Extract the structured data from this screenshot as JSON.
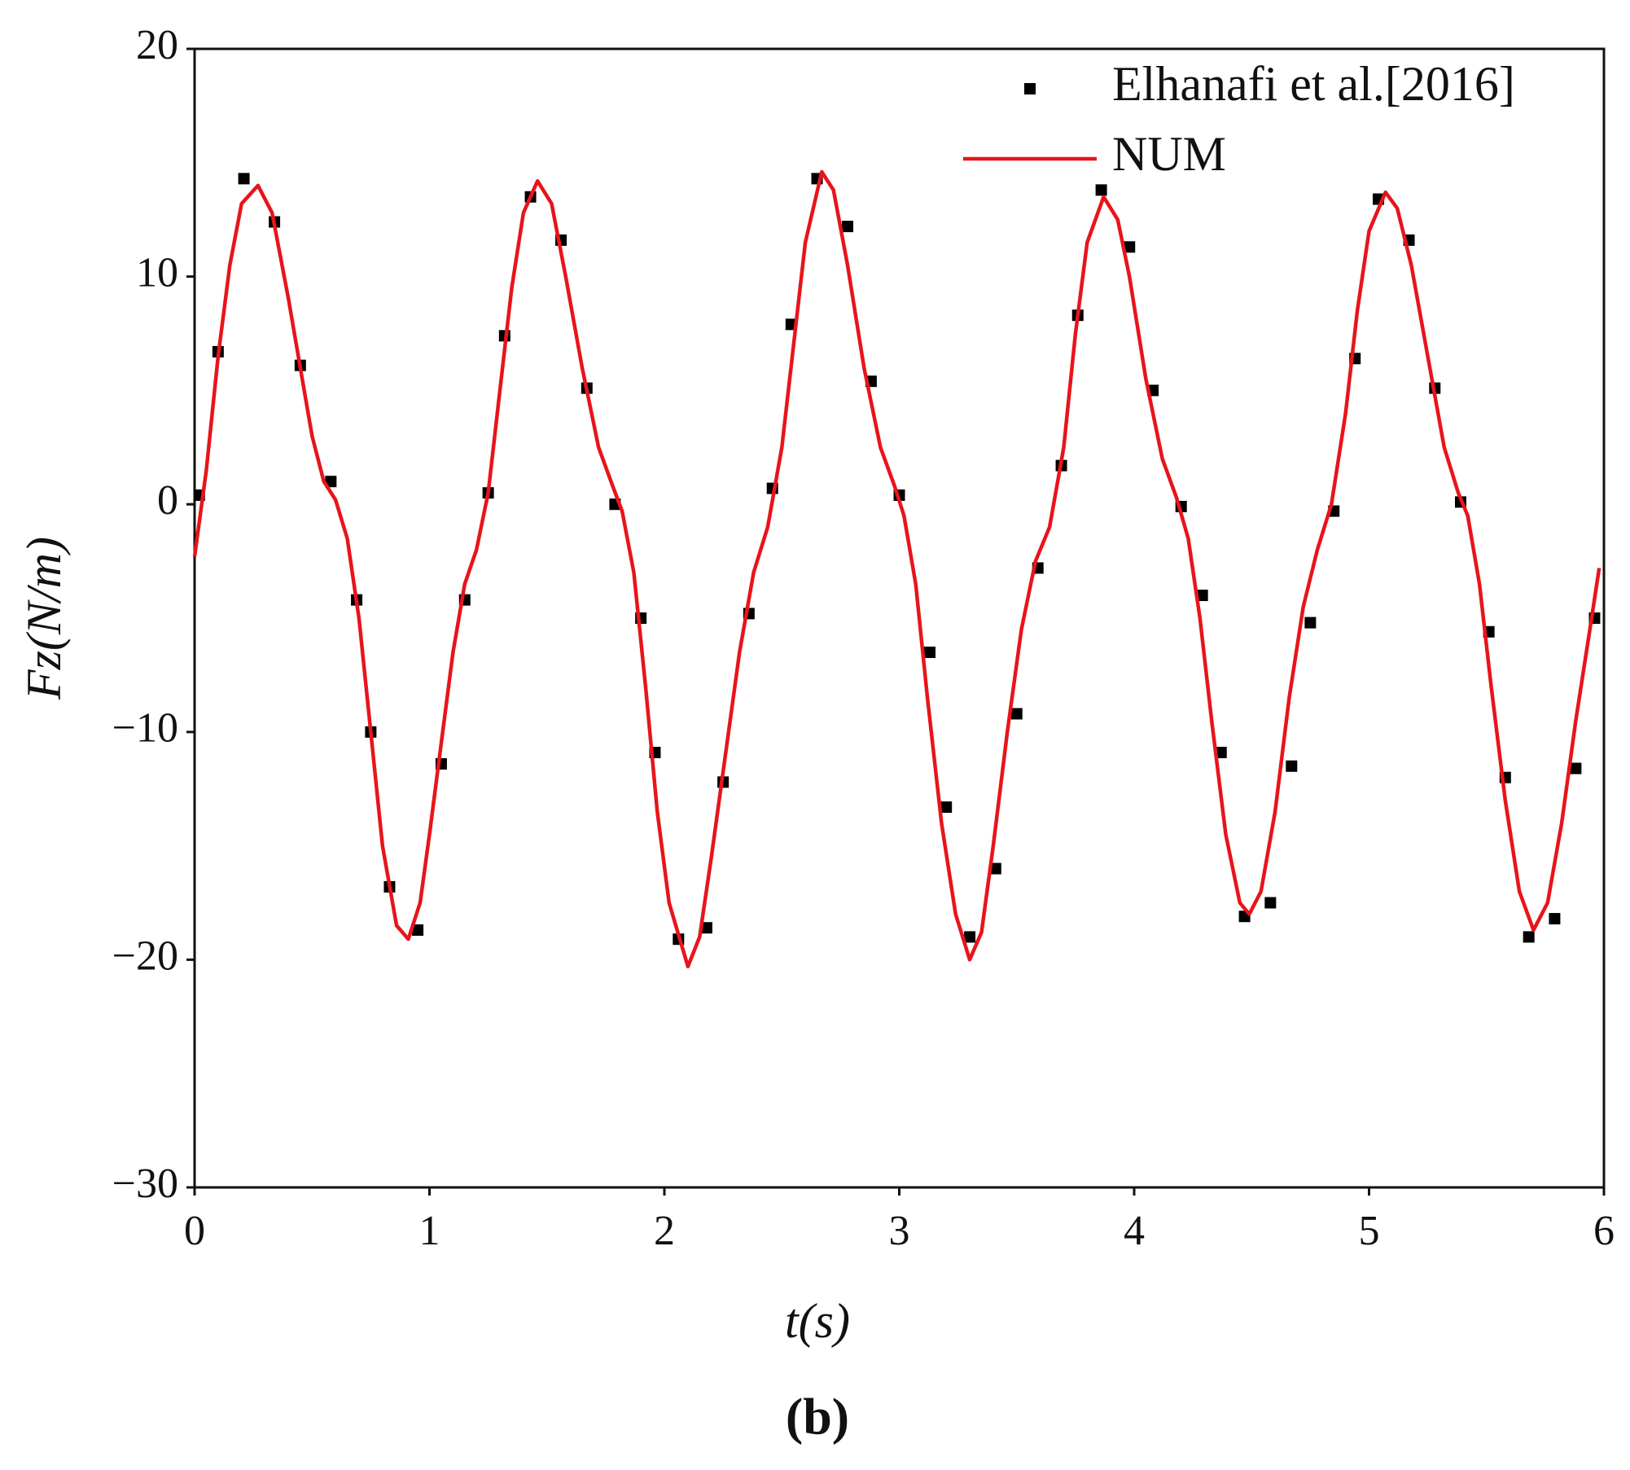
{
  "chart_data": {
    "type": "line",
    "panel_label": "(b)",
    "xlabel": "t(s)",
    "ylabel": "Fz(N/m)",
    "xlim": [
      0,
      6
    ],
    "xticks": [
      0,
      1,
      2,
      3,
      4,
      5,
      6
    ],
    "ylim": [
      -30,
      20
    ],
    "yticks": [
      20,
      10,
      0,
      {
        "value": -10,
        "label": "−10"
      },
      {
        "value": -20,
        "label": "−20"
      },
      {
        "value": -30,
        "label": "−30"
      }
    ],
    "legend": "upper right",
    "series": [
      {
        "name": "Elhanafi et al.[2016]",
        "kind": "scatter",
        "color": "#000000",
        "x": [
          0.02,
          0.1,
          0.21,
          0.34,
          0.45,
          0.58,
          0.69,
          0.75,
          0.83,
          0.95,
          1.05,
          1.15,
          1.25,
          1.32,
          1.43,
          1.56,
          1.67,
          1.79,
          1.9,
          1.96,
          2.06,
          2.18,
          2.25,
          2.36,
          2.46,
          2.54,
          2.65,
          2.78,
          2.88,
          3.0,
          3.13,
          3.2,
          3.3,
          3.41,
          3.5,
          3.59,
          3.69,
          3.76,
          3.86,
          3.98,
          4.08,
          4.2,
          4.29,
          4.37,
          4.47,
          4.58,
          4.67,
          4.75,
          4.85,
          4.94,
          5.04,
          5.17,
          5.28,
          5.39,
          5.51,
          5.58,
          5.68,
          5.79,
          5.88,
          5.96
        ],
        "values": [
          0.4,
          6.7,
          14.3,
          12.4,
          6.1,
          1.0,
          -4.2,
          -10.0,
          -16.8,
          -18.7,
          -11.4,
          -4.2,
          0.5,
          7.4,
          13.5,
          11.6,
          5.1,
          0.0,
          -5.0,
          -10.9,
          -19.1,
          -18.6,
          -12.2,
          -4.8,
          0.7,
          7.9,
          14.3,
          12.2,
          5.4,
          0.4,
          -6.5,
          -13.3,
          -19.0,
          -16.0,
          -9.2,
          -2.8,
          1.7,
          8.3,
          13.8,
          11.3,
          5.0,
          -0.1,
          -4.0,
          -10.9,
          -18.1,
          -17.5,
          -11.5,
          -5.2,
          -0.3,
          6.4,
          13.4,
          11.6,
          5.1,
          0.1,
          -5.6,
          -12.0,
          -19.0,
          -18.2,
          -11.6,
          -5.0
        ]
      },
      {
        "name": "NUM",
        "kind": "line",
        "color": "#e8141b",
        "x": [
          0,
          0.05,
          0.1,
          0.15,
          0.2,
          0.27,
          0.33,
          0.4,
          0.45,
          0.5,
          0.55,
          0.6,
          0.65,
          0.7,
          0.75,
          0.8,
          0.86,
          0.91,
          0.96,
          1.0,
          1.05,
          1.1,
          1.15,
          1.2,
          1.25,
          1.3,
          1.35,
          1.4,
          1.46,
          1.52,
          1.58,
          1.65,
          1.72,
          1.78,
          1.82,
          1.87,
          1.92,
          1.97,
          2.02,
          2.1,
          2.15,
          2.2,
          2.26,
          2.32,
          2.38,
          2.44,
          2.5,
          2.55,
          2.6,
          2.67,
          2.72,
          2.78,
          2.85,
          2.92,
          2.98,
          3.02,
          3.07,
          3.12,
          3.18,
          3.24,
          3.3,
          3.35,
          3.4,
          3.46,
          3.52,
          3.58,
          3.64,
          3.7,
          3.75,
          3.8,
          3.87,
          3.93,
          3.98,
          4.05,
          4.12,
          4.18,
          4.23,
          4.28,
          4.33,
          4.39,
          4.45,
          4.49,
          4.54,
          4.6,
          4.66,
          4.72,
          4.78,
          4.84,
          4.9,
          4.95,
          5.0,
          5.07,
          5.12,
          5.18,
          5.25,
          5.32,
          5.38,
          5.42,
          5.47,
          5.52,
          5.58,
          5.64,
          5.7,
          5.76,
          5.82,
          5.88,
          5.94,
          5.98
        ],
        "values": [
          -2.3,
          1.5,
          6.5,
          10.5,
          13.2,
          14.0,
          12.8,
          9.0,
          6.0,
          3.0,
          1.0,
          0.2,
          -1.5,
          -5.0,
          -10.0,
          -15.0,
          -18.5,
          -19.1,
          -17.5,
          -14.5,
          -10.5,
          -6.5,
          -3.5,
          -2.0,
          0.5,
          5.0,
          9.5,
          12.8,
          14.2,
          13.2,
          10.0,
          6.0,
          2.5,
          0.8,
          -0.3,
          -3.0,
          -8.0,
          -13.5,
          -17.5,
          -20.3,
          -19.0,
          -15.5,
          -11.0,
          -6.5,
          -3.0,
          -1.0,
          2.5,
          7.0,
          11.5,
          14.6,
          13.8,
          10.5,
          6.0,
          2.5,
          0.8,
          -0.5,
          -3.5,
          -8.5,
          -14.0,
          -18.0,
          -20.0,
          -18.8,
          -15.0,
          -10.0,
          -5.5,
          -2.5,
          -1.0,
          2.5,
          7.5,
          11.5,
          13.5,
          12.5,
          10.0,
          5.5,
          2.0,
          0.3,
          -1.5,
          -5.0,
          -9.5,
          -14.5,
          -17.5,
          -18.0,
          -17.0,
          -13.5,
          -8.5,
          -4.5,
          -2.0,
          0.0,
          4.0,
          8.5,
          12.0,
          13.7,
          13.0,
          10.5,
          6.5,
          2.5,
          0.5,
          -0.5,
          -3.5,
          -8.0,
          -13.0,
          -17.0,
          -18.7,
          -17.5,
          -14.0,
          -9.5,
          -5.5,
          -2.8
        ]
      }
    ]
  }
}
